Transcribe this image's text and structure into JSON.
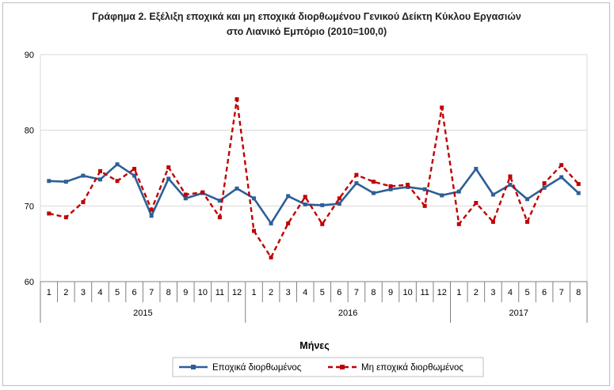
{
  "colors": {
    "sa": "#2e5f97",
    "nsa": "#c00000",
    "grid": "#d9d9d9",
    "axis": "#808080"
  },
  "chart_data": {
    "type": "line",
    "title": "Γράφημα 2. Εξέλιξη εποχικά και μη εποχικά διορθωμένου Γενικού Δείκτη Κύκλου Εργασιών",
    "subtitle": "στο Λιανικό Εμπόριο (2010=100,0)",
    "xlabel": "Μήνες",
    "ylabel": "",
    "ylim": [
      60,
      90
    ],
    "yticks": [
      60,
      70,
      80,
      90
    ],
    "grid": true,
    "legend_position": "bottom",
    "categories": [
      "1",
      "2",
      "3",
      "4",
      "5",
      "6",
      "7",
      "8",
      "9",
      "10",
      "11",
      "12",
      "1",
      "2",
      "3",
      "4",
      "5",
      "6",
      "7",
      "8",
      "9",
      "10",
      "11",
      "12",
      "1",
      "2",
      "3",
      "4",
      "5",
      "6",
      "7",
      "8"
    ],
    "years": [
      {
        "label": "2015",
        "count": 12
      },
      {
        "label": "2016",
        "count": 12
      },
      {
        "label": "2017",
        "count": 8
      }
    ],
    "series": [
      {
        "name": "Εποχικά διορθωμένος",
        "style": "solid",
        "marker": "square",
        "values": [
          73.3,
          73.2,
          74.0,
          73.5,
          75.5,
          74.0,
          68.7,
          73.6,
          71.0,
          71.7,
          70.7,
          72.3,
          71.0,
          67.7,
          71.3,
          70.2,
          70.1,
          70.3,
          73.0,
          71.7,
          72.2,
          72.5,
          72.2,
          71.4,
          71.9,
          74.9,
          71.5,
          72.8,
          70.9,
          72.4,
          73.8,
          71.7
        ]
      },
      {
        "name": "Μη εποχικά διορθωμένος",
        "style": "dashed",
        "marker": "square",
        "values": [
          69.0,
          68.5,
          70.5,
          74.6,
          73.3,
          74.9,
          69.5,
          75.1,
          71.5,
          71.8,
          68.5,
          84.1,
          66.7,
          63.2,
          67.7,
          71.2,
          67.6,
          71.0,
          74.1,
          73.2,
          72.6,
          72.8,
          70.0,
          83.0,
          67.6,
          70.4,
          67.9,
          73.9,
          67.9,
          73.0,
          75.4,
          72.9
        ]
      }
    ]
  }
}
